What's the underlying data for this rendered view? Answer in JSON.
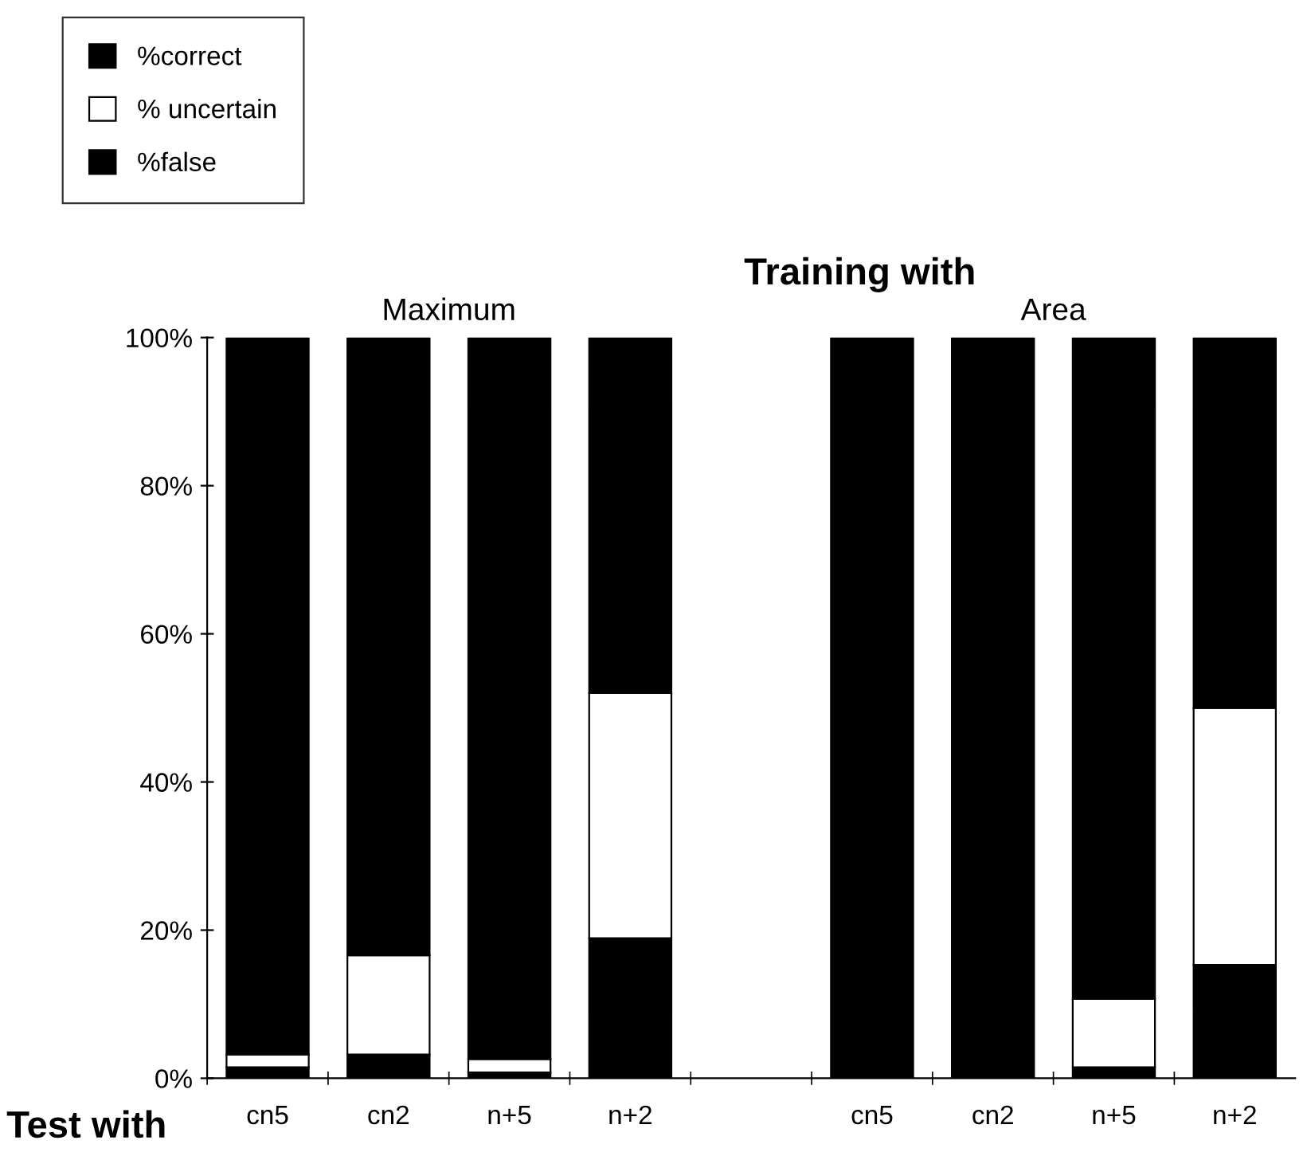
{
  "chart_data": {
    "type": "bar",
    "title": "Training with",
    "stacked": true,
    "categories": [
      "cn5",
      "cn2",
      "n+5",
      "n+2",
      null,
      "cn5",
      "cn2",
      "n+5",
      "n+2"
    ],
    "series": [
      {
        "name": "%false",
        "color": "#000000",
        "values": [
          1.5,
          3.2,
          0.8,
          18.9,
          null,
          0,
          null,
          1.5,
          15.3
        ]
      },
      {
        "name": "% uncertain",
        "color": "#ffffff",
        "values": [
          1.7,
          13.4,
          1.8,
          33.1,
          null,
          0,
          0,
          9.2,
          34.7
        ]
      },
      {
        "name": "%correct",
        "color": "#000000",
        "values": [
          96.8,
          83.4,
          97.4,
          48,
          null,
          100,
          100,
          89.3,
          50
        ]
      }
    ],
    "ylim": [
      0,
      100
    ],
    "yticks": [
      {
        "value": 0,
        "label": "0%"
      },
      {
        "value": 20,
        "label": "20%"
      },
      {
        "value": 40,
        "label": "40%"
      },
      {
        "value": 60,
        "label": "60%"
      },
      {
        "value": 80,
        "label": "80%"
      },
      {
        "value": 100,
        "label": "100%"
      }
    ],
    "annotations": [
      "Maximum",
      "Area",
      "Test with"
    ],
    "legend": "top left",
    "grid": false
  }
}
